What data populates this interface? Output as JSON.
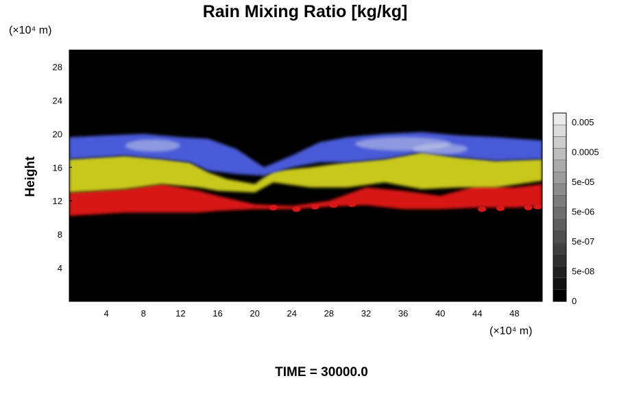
{
  "chart_data": {
    "type": "heatmap",
    "title": "Rain Mixing Ratio [kg/kg]",
    "ylabel": "Height",
    "xlabel": "",
    "y_unit": "(×10⁴ m)",
    "x_unit": "(×10⁴ m)",
    "xlim": [
      0,
      51
    ],
    "ylim": [
      0,
      30
    ],
    "x_ticks": [
      4,
      8,
      12,
      16,
      20,
      24,
      28,
      32,
      36,
      40,
      44,
      48
    ],
    "y_ticks": [
      4,
      8,
      12,
      16,
      20,
      24,
      28
    ],
    "colorbar": {
      "labels": [
        "0",
        "5e-08",
        "5e-07",
        "5e-06",
        "5e-05",
        "0.0005",
        "0.005"
      ],
      "steps": 16
    },
    "background_color": "#000000",
    "field_colors": {
      "upper": "#4a5ad8",
      "upper_light": "#c8cde6",
      "middle": "#c8c81e",
      "lower": "#d81818"
    },
    "layers": [
      {
        "name": "",
        "color": "#d81818",
        "top": [
          [
            0,
            13.0
          ],
          [
            6,
            13.4
          ],
          [
            10,
            14.0
          ],
          [
            14,
            13.2
          ],
          [
            16,
            12.6
          ],
          [
            20,
            11.6
          ],
          [
            24,
            11.4
          ],
          [
            28,
            12.0
          ],
          [
            32,
            13.6
          ],
          [
            36,
            13.2
          ],
          [
            40,
            12.6
          ],
          [
            44,
            13.8
          ],
          [
            48,
            13.6
          ],
          [
            51,
            14.0
          ]
        ],
        "bottom": [
          [
            0,
            10.2
          ],
          [
            6,
            10.6
          ],
          [
            10,
            10.6
          ],
          [
            14,
            10.6
          ],
          [
            16,
            10.8
          ],
          [
            20,
            11.0
          ],
          [
            24,
            11.0
          ],
          [
            28,
            11.3
          ],
          [
            32,
            11.5
          ],
          [
            36,
            11.0
          ],
          [
            40,
            11.0
          ],
          [
            44,
            11.2
          ],
          [
            48,
            11.2
          ],
          [
            51,
            11.4
          ]
        ]
      },
      {
        "name": "",
        "color": "#c8c81e",
        "top": [
          [
            0,
            17.0
          ],
          [
            6,
            17.4
          ],
          [
            10,
            17.0
          ],
          [
            13,
            16.6
          ],
          [
            15,
            15.4
          ],
          [
            17,
            14.6
          ],
          [
            20,
            14.0
          ],
          [
            22,
            15.6
          ],
          [
            26,
            16.0
          ],
          [
            30,
            16.6
          ],
          [
            34,
            17.0
          ],
          [
            38,
            17.8
          ],
          [
            42,
            17.2
          ],
          [
            46,
            16.8
          ],
          [
            51,
            17.0
          ]
        ],
        "bottom": [
          [
            0,
            13.0
          ],
          [
            6,
            13.4
          ],
          [
            10,
            14.0
          ],
          [
            14,
            13.6
          ],
          [
            16,
            13.2
          ],
          [
            20,
            13.0
          ],
          [
            22,
            14.2
          ],
          [
            26,
            13.6
          ],
          [
            30,
            13.6
          ],
          [
            34,
            14.2
          ],
          [
            38,
            13.4
          ],
          [
            42,
            13.6
          ],
          [
            46,
            13.6
          ],
          [
            51,
            14.4
          ]
        ]
      },
      {
        "name": "",
        "color": "#4a5ad8",
        "top": [
          [
            0,
            19.6
          ],
          [
            4,
            19.8
          ],
          [
            8,
            20.0
          ],
          [
            12,
            19.6
          ],
          [
            15,
            19.4
          ],
          [
            18,
            18.2
          ],
          [
            21,
            16.0
          ],
          [
            24,
            17.4
          ],
          [
            27,
            19.0
          ],
          [
            30,
            19.6
          ],
          [
            34,
            20.0
          ],
          [
            38,
            20.2
          ],
          [
            42,
            19.8
          ],
          [
            46,
            19.6
          ],
          [
            51,
            19.2
          ]
        ],
        "bottom": [
          [
            0,
            17.0
          ],
          [
            6,
            17.4
          ],
          [
            10,
            17.0
          ],
          [
            13,
            16.6
          ],
          [
            15,
            15.6
          ],
          [
            18,
            15.2
          ],
          [
            21,
            15.0
          ],
          [
            24,
            16.0
          ],
          [
            27,
            16.6
          ],
          [
            30,
            16.6
          ],
          [
            34,
            17.0
          ],
          [
            38,
            17.8
          ],
          [
            42,
            17.2
          ],
          [
            46,
            16.8
          ],
          [
            51,
            17.0
          ]
        ]
      }
    ],
    "droplets": [
      [
        22,
        11.2
      ],
      [
        24.5,
        11.0
      ],
      [
        26.5,
        11.3
      ],
      [
        28.5,
        11.5
      ],
      [
        30.5,
        11.6
      ],
      [
        44.5,
        11.0
      ],
      [
        46.5,
        11.1
      ],
      [
        49.5,
        11.2
      ],
      [
        50.5,
        11.3
      ]
    ]
  },
  "footer": {
    "time_label": "TIME = 30000.0"
  }
}
